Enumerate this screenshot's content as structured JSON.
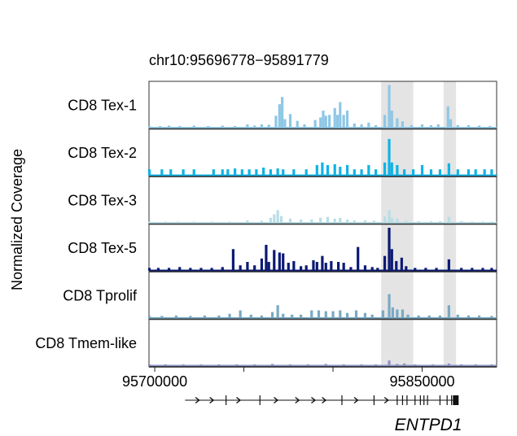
{
  "chart_data": {
    "type": "area",
    "title": "chr10:95696778−95891779",
    "ylabel": "Normalized Coverage",
    "xlim": [
      95696778,
      95891779
    ],
    "x_ticks": [
      95700000,
      95850000
    ],
    "x_minor_ticks": [
      95750000,
      95800000
    ],
    "highlight_regions": [
      [
        95827000,
        95845000
      ],
      [
        95862000,
        95869000
      ]
    ],
    "track_ylim": [
      0,
      1
    ],
    "series": [
      {
        "name": "CD8 Tex-1",
        "color": "#8ec7e5",
        "peaks": [
          [
            95697000,
            0.04
          ],
          [
            95703000,
            0.04
          ],
          [
            95708000,
            0.05
          ],
          [
            95714000,
            0.04
          ],
          [
            95722000,
            0.05
          ],
          [
            95730000,
            0.04
          ],
          [
            95738000,
            0.05
          ],
          [
            95745000,
            0.04
          ],
          [
            95752000,
            0.08
          ],
          [
            95756000,
            0.05
          ],
          [
            95760000,
            0.08
          ],
          [
            95764000,
            0.07
          ],
          [
            95768000,
            0.28
          ],
          [
            95770000,
            0.55
          ],
          [
            95771500,
            0.72
          ],
          [
            95773000,
            0.2
          ],
          [
            95776000,
            0.32
          ],
          [
            95780000,
            0.16
          ],
          [
            95784000,
            0.08
          ],
          [
            95790000,
            0.18
          ],
          [
            95793000,
            0.24
          ],
          [
            95794500,
            0.4
          ],
          [
            95796000,
            0.28
          ],
          [
            95798000,
            0.3
          ],
          [
            95801000,
            0.46
          ],
          [
            95802500,
            0.3
          ],
          [
            95804000,
            0.6
          ],
          [
            95806000,
            0.3
          ],
          [
            95808000,
            0.4
          ],
          [
            95812000,
            0.1
          ],
          [
            95816000,
            0.08
          ],
          [
            95820000,
            0.12
          ],
          [
            95824000,
            0.06
          ],
          [
            95829000,
            0.3
          ],
          [
            95831500,
            1.0
          ],
          [
            95833000,
            0.4
          ],
          [
            95836000,
            0.22
          ],
          [
            95839000,
            0.15
          ],
          [
            95844000,
            0.06
          ],
          [
            95850000,
            0.08
          ],
          [
            95855000,
            0.06
          ],
          [
            95859000,
            0.08
          ],
          [
            95864500,
            0.5
          ],
          [
            95866000,
            0.2
          ],
          [
            95870000,
            0.06
          ],
          [
            95876000,
            0.06
          ],
          [
            95882000,
            0.05
          ],
          [
            95888000,
            0.04
          ]
        ]
      },
      {
        "name": "CD8 Tex-2",
        "color": "#10b3e6",
        "peaks": [
          [
            95697000,
            0.14
          ],
          [
            95704000,
            0.14
          ],
          [
            95709000,
            0.14
          ],
          [
            95716000,
            0.14
          ],
          [
            95722000,
            0.14
          ],
          [
            95733000,
            0.14
          ],
          [
            95738000,
            0.14
          ],
          [
            95741000,
            0.14
          ],
          [
            95745000,
            0.16
          ],
          [
            95749000,
            0.14
          ],
          [
            95753000,
            0.14
          ],
          [
            95757000,
            0.14
          ],
          [
            95761000,
            0.18
          ],
          [
            95765000,
            0.14
          ],
          [
            95769000,
            0.16
          ],
          [
            95772000,
            0.14
          ],
          [
            95778000,
            0.14
          ],
          [
            95785000,
            0.14
          ],
          [
            95791000,
            0.24
          ],
          [
            95794000,
            0.3
          ],
          [
            95797000,
            0.24
          ],
          [
            95801000,
            0.26
          ],
          [
            95804000,
            0.2
          ],
          [
            95808000,
            0.24
          ],
          [
            95812000,
            0.14
          ],
          [
            95816000,
            0.14
          ],
          [
            95820000,
            0.24
          ],
          [
            95824000,
            0.14
          ],
          [
            95829000,
            0.3
          ],
          [
            95831500,
            0.85
          ],
          [
            95833000,
            0.3
          ],
          [
            95836000,
            0.24
          ],
          [
            95840000,
            0.14
          ],
          [
            95845000,
            0.14
          ],
          [
            95850000,
            0.24
          ],
          [
            95855000,
            0.14
          ],
          [
            95860000,
            0.14
          ],
          [
            95865000,
            0.28
          ],
          [
            95870000,
            0.14
          ],
          [
            95876000,
            0.14
          ],
          [
            95880000,
            0.14
          ],
          [
            95885000,
            0.14
          ],
          [
            95889000,
            0.14
          ]
        ]
      },
      {
        "name": "CD8 Tex-3",
        "color": "#b7dee6",
        "peaks": [
          [
            95697000,
            0.03
          ],
          [
            95706000,
            0.03
          ],
          [
            95713000,
            0.03
          ],
          [
            95722000,
            0.03
          ],
          [
            95732000,
            0.03
          ],
          [
            95742000,
            0.03
          ],
          [
            95752000,
            0.06
          ],
          [
            95760000,
            0.05
          ],
          [
            95765000,
            0.12
          ],
          [
            95767000,
            0.2
          ],
          [
            95769000,
            0.3
          ],
          [
            95771000,
            0.16
          ],
          [
            95776000,
            0.1
          ],
          [
            95782000,
            0.08
          ],
          [
            95788000,
            0.08
          ],
          [
            95793000,
            0.12
          ],
          [
            95797000,
            0.14
          ],
          [
            95801000,
            0.1
          ],
          [
            95804000,
            0.12
          ],
          [
            95808000,
            0.08
          ],
          [
            95812000,
            0.06
          ],
          [
            95818000,
            0.06
          ],
          [
            95823000,
            0.05
          ],
          [
            95829000,
            0.15
          ],
          [
            95831500,
            0.3
          ],
          [
            95833000,
            0.12
          ],
          [
            95836000,
            0.1
          ],
          [
            95841000,
            0.05
          ],
          [
            95848000,
            0.04
          ],
          [
            95855000,
            0.04
          ],
          [
            95860000,
            0.04
          ],
          [
            95865000,
            0.14
          ],
          [
            95872000,
            0.04
          ],
          [
            95878000,
            0.03
          ],
          [
            95884000,
            0.03
          ],
          [
            95889000,
            0.03
          ]
        ]
      },
      {
        "name": "CD8 Tex-5",
        "color": "#0c1a74",
        "peaks": [
          [
            95697000,
            0.06
          ],
          [
            95702000,
            0.06
          ],
          [
            95708000,
            0.06
          ],
          [
            95714000,
            0.08
          ],
          [
            95720000,
            0.06
          ],
          [
            95726000,
            0.06
          ],
          [
            95732000,
            0.06
          ],
          [
            95738000,
            0.08
          ],
          [
            95744000,
            0.5
          ],
          [
            95748000,
            0.12
          ],
          [
            95752000,
            0.2
          ],
          [
            95756000,
            0.12
          ],
          [
            95760000,
            0.28
          ],
          [
            95762500,
            0.6
          ],
          [
            95764000,
            0.2
          ],
          [
            95767000,
            0.48
          ],
          [
            95770000,
            0.42
          ],
          [
            95772000,
            0.4
          ],
          [
            95775000,
            0.18
          ],
          [
            95778000,
            0.22
          ],
          [
            95782000,
            0.1
          ],
          [
            95785000,
            0.12
          ],
          [
            95789000,
            0.24
          ],
          [
            95791000,
            0.2
          ],
          [
            95794000,
            0.34
          ],
          [
            95796000,
            0.18
          ],
          [
            95799000,
            0.22
          ],
          [
            95803000,
            0.2
          ],
          [
            95806000,
            0.18
          ],
          [
            95810000,
            0.08
          ],
          [
            95814000,
            0.55
          ],
          [
            95818000,
            0.12
          ],
          [
            95822000,
            0.08
          ],
          [
            95825000,
            0.06
          ],
          [
            95829000,
            0.34
          ],
          [
            95831500,
            1.0
          ],
          [
            95833000,
            0.5
          ],
          [
            95835500,
            0.22
          ],
          [
            95838500,
            0.3
          ],
          [
            95841000,
            0.1
          ],
          [
            95846000,
            0.06
          ],
          [
            95852000,
            0.06
          ],
          [
            95858000,
            0.06
          ],
          [
            95865000,
            0.26
          ],
          [
            95872000,
            0.06
          ],
          [
            95878000,
            0.06
          ],
          [
            95884000,
            0.06
          ],
          [
            95889000,
            0.06
          ]
        ]
      },
      {
        "name": "CD8 Tprolif",
        "color": "#79a9c3",
        "peaks": [
          [
            95697000,
            0.05
          ],
          [
            95704000,
            0.05
          ],
          [
            95712000,
            0.06
          ],
          [
            95720000,
            0.05
          ],
          [
            95728000,
            0.06
          ],
          [
            95736000,
            0.06
          ],
          [
            95742000,
            0.1
          ],
          [
            95748000,
            0.18
          ],
          [
            95754000,
            0.08
          ],
          [
            95760000,
            0.06
          ],
          [
            95766000,
            0.14
          ],
          [
            95769000,
            0.3
          ],
          [
            95772000,
            0.1
          ],
          [
            95777000,
            0.08
          ],
          [
            95782000,
            0.08
          ],
          [
            95788000,
            0.18
          ],
          [
            95792000,
            0.18
          ],
          [
            95796000,
            0.16
          ],
          [
            95800000,
            0.16
          ],
          [
            95804000,
            0.18
          ],
          [
            95808000,
            0.12
          ],
          [
            95813000,
            0.18
          ],
          [
            95818000,
            0.12
          ],
          [
            95822000,
            0.08
          ],
          [
            95828000,
            0.18
          ],
          [
            95831500,
            0.56
          ],
          [
            95833500,
            0.25
          ],
          [
            95836000,
            0.2
          ],
          [
            95839000,
            0.2
          ],
          [
            95842000,
            0.08
          ],
          [
            95848000,
            0.06
          ],
          [
            95854000,
            0.06
          ],
          [
            95860000,
            0.06
          ],
          [
            95865000,
            0.3
          ],
          [
            95870000,
            0.08
          ],
          [
            95876000,
            0.06
          ],
          [
            95882000,
            0.06
          ],
          [
            95889000,
            0.05
          ]
        ]
      },
      {
        "name": "CD8 Tmem-like",
        "color": "#8b91c5",
        "peaks": [
          [
            95697000,
            0.03
          ],
          [
            95706000,
            0.03
          ],
          [
            95716000,
            0.03
          ],
          [
            95726000,
            0.03
          ],
          [
            95736000,
            0.03
          ],
          [
            95746000,
            0.03
          ],
          [
            95756000,
            0.03
          ],
          [
            95766000,
            0.04
          ],
          [
            95776000,
            0.03
          ],
          [
            95786000,
            0.03
          ],
          [
            95796000,
            0.04
          ],
          [
            95806000,
            0.03
          ],
          [
            95816000,
            0.03
          ],
          [
            95824000,
            0.03
          ],
          [
            95831500,
            0.12
          ],
          [
            95836000,
            0.04
          ],
          [
            95840000,
            0.05
          ],
          [
            95846000,
            0.03
          ],
          [
            95856000,
            0.03
          ],
          [
            95865000,
            0.05
          ],
          [
            95872000,
            0.03
          ],
          [
            95880000,
            0.03
          ],
          [
            95889000,
            0.03
          ]
        ]
      }
    ],
    "gene": {
      "name": "ENTPD1",
      "start": 95717000,
      "end": 95870000,
      "exons": [
        95740000,
        95759000,
        95805000,
        95823000,
        95836000,
        95839000,
        95841500,
        95846000,
        95849000,
        95851000,
        95853000,
        95860000,
        95864000,
        95866500
      ],
      "arrows": [
        95724000,
        95732000,
        95747000,
        95768000,
        95780000,
        95789000,
        95795000,
        95813000,
        95830000
      ]
    }
  }
}
